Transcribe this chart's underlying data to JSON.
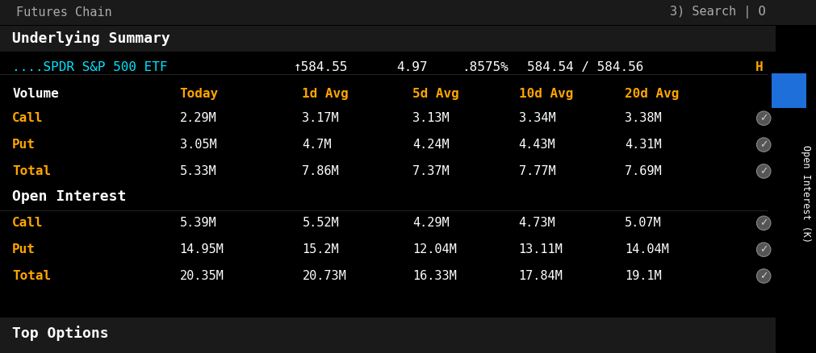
{
  "bg_color": "#000000",
  "top_bar_color": "#1a1a1a",
  "futures_text": "Futures Chain",
  "search_text": "3) Search | O",
  "title_section": "Underlying Summary",
  "ticker_color": "#00e5ff",
  "ticker_text": "....SPDR S&P 500 ETF",
  "ticker_price": "↑584.55",
  "ticker_change": "4.97",
  "ticker_pct": ".8575%",
  "ticker_bid_ask": "584.54 / 584.56",
  "ticker_suffix": "H",
  "orange_color": "#FFA500",
  "white_color": "#FFFFFF",
  "cyan_color": "#00e5ff",
  "gray_color": "#888888",
  "col_headers": [
    "Volume",
    "Today",
    "1d Avg",
    "5d Avg",
    "10d Avg",
    "20d Avg"
  ],
  "col_header_colors": [
    "#FFFFFF",
    "#FFA500",
    "#FFA500",
    "#FFA500",
    "#FFA500",
    "#FFA500"
  ],
  "volume_rows": [
    {
      "label": "Call",
      "color": "#FFA500",
      "values": [
        "2.29M",
        "3.17M",
        "3.13M",
        "3.34M",
        "3.38M"
      ]
    },
    {
      "label": "Put",
      "color": "#FFA500",
      "values": [
        "3.05M",
        "4.7M",
        "4.24M",
        "4.43M",
        "4.31M"
      ]
    },
    {
      "label": "Total",
      "color": "#FFA500",
      "values": [
        "5.33M",
        "7.86M",
        "7.37M",
        "7.77M",
        "7.69M"
      ]
    }
  ],
  "oi_section": "Open Interest",
  "oi_rows": [
    {
      "label": "Call",
      "color": "#FFA500",
      "values": [
        "5.39M",
        "5.52M",
        "4.29M",
        "4.73M",
        "5.07M"
      ]
    },
    {
      "label": "Put",
      "color": "#FFA500",
      "values": [
        "14.95M",
        "15.2M",
        "12.04M",
        "13.11M",
        "14.04M"
      ]
    },
    {
      "label": "Total",
      "color": "#FFA500",
      "values": [
        "20.35M",
        "20.73M",
        "16.33M",
        "17.84M",
        "19.1M"
      ]
    }
  ],
  "bottom_label": "Top Options",
  "side_label": "Open Interest (K)",
  "blue_rect_color": "#1E6FD9",
  "figsize": [
    10.12,
    4.38
  ],
  "dpi": 100
}
